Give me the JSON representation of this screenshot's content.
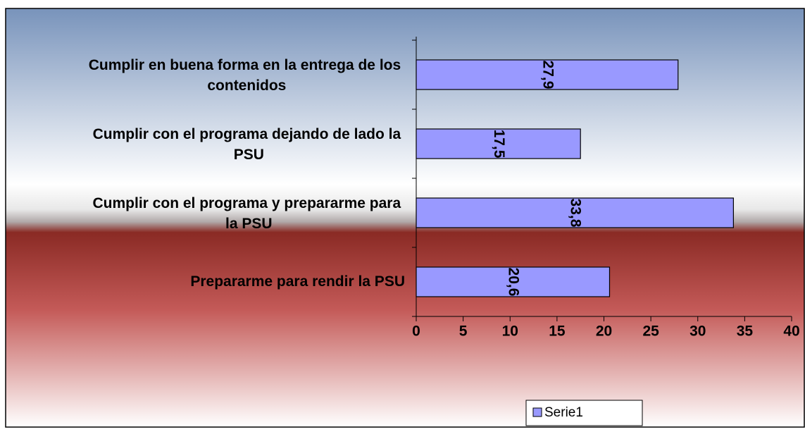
{
  "chart_data": {
    "type": "bar",
    "orientation": "horizontal",
    "categories": [
      "Cumplir en buena forma en la entrega de los contenidos",
      "Cumplir con el programa dejando de lado la PSU",
      "Cumplir con el programa y prepararme para la PSU",
      "Prepararme para rendir la PSU"
    ],
    "series": [
      {
        "name": "Serie1",
        "color": "#9999ff",
        "values": [
          27.9,
          17.5,
          33.8,
          20.6
        ],
        "value_labels": [
          "27,9",
          "17,5",
          "33,8",
          "20,6"
        ]
      }
    ],
    "xlim": [
      0,
      40
    ],
    "xticks": [
      0,
      5,
      10,
      15,
      20,
      25,
      30,
      35,
      40
    ],
    "legend": "bottom"
  }
}
